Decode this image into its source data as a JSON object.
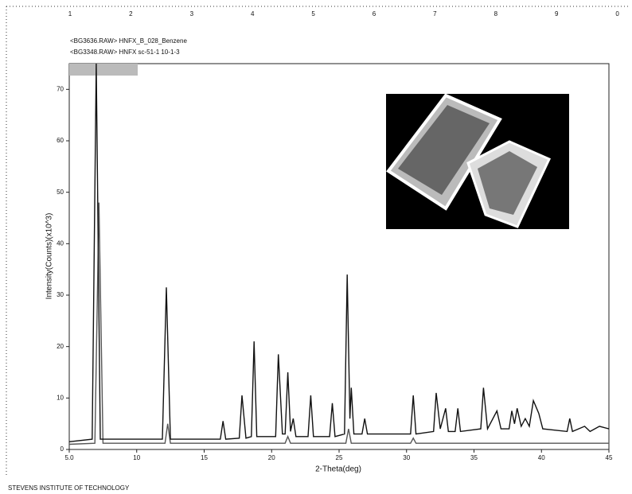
{
  "ruler_labels": [
    "1",
    "2",
    "3",
    "4",
    "5",
    "6",
    "7",
    "8",
    "9",
    "0"
  ],
  "footer": "STEVENS INSTITUTE OF TECHNOLOGY",
  "chart_data": {
    "type": "line",
    "y_label": "Intensity(Counts)(x10^3)",
    "x_label": "2-Theta(deg)",
    "xlim": [
      5,
      45
    ],
    "ylim": [
      0,
      75
    ],
    "xticks": [
      {
        "value": 5,
        "label": "5.0"
      },
      10,
      15,
      20,
      25,
      30,
      35,
      40,
      45
    ],
    "yticks": [
      0,
      10,
      20,
      30,
      40,
      50,
      60,
      70
    ],
    "series": [
      {
        "name": "<BG3636.RAW> HNFX_B_028_Benzene",
        "color": "#111111",
        "x": [
          5,
          6.7,
          7.0,
          7.3,
          11.9,
          12.2,
          12.5,
          16.2,
          16.4,
          16.6,
          17.6,
          17.8,
          18.1,
          18.5,
          18.7,
          18.9,
          20.3,
          20.5,
          20.8,
          21.0,
          21.2,
          21.4,
          21.6,
          21.8,
          22.7,
          22.9,
          23.1,
          24.3,
          24.5,
          24.7,
          25.4,
          25.6,
          25.8,
          25.9,
          26.1,
          26.7,
          26.9,
          27.1,
          30.3,
          30.5,
          30.7,
          32.0,
          32.2,
          32.5,
          32.9,
          33.1,
          33.6,
          33.8,
          34.0,
          35.5,
          35.7,
          36.0,
          36.7,
          37.0,
          37.6,
          37.8,
          38.0,
          38.2,
          38.5,
          38.8,
          39.1,
          39.4,
          39.8,
          40.1,
          41.9,
          42.1,
          42.3,
          43.2,
          43.6,
          44.3,
          45
        ],
        "values": [
          1.5,
          2,
          75,
          2,
          2,
          31.5,
          2,
          2,
          5.5,
          2,
          2.2,
          10.5,
          2.2,
          2.5,
          21,
          2.5,
          2.5,
          18.5,
          3,
          3,
          15,
          3.5,
          6,
          2.5,
          2.5,
          10.5,
          2.5,
          2.5,
          9,
          2.5,
          3,
          34,
          6,
          12,
          3,
          3,
          6,
          3,
          3,
          10.5,
          3,
          3.5,
          11,
          4,
          8,
          3.5,
          3.5,
          8,
          3.5,
          4,
          12,
          4,
          7.5,
          4,
          4,
          7.5,
          5,
          8,
          4.5,
          6,
          4.5,
          9.5,
          7,
          4,
          3.5,
          6,
          3.5,
          4.5,
          3.5,
          4.5,
          4
        ]
      },
      {
        "name": "<BG3348.RAW> HNFX sc-51-1 10-1-3",
        "color": "#555555",
        "x": [
          5,
          6.9,
          7.2,
          7.5,
          12.1,
          12.3,
          12.5,
          21.0,
          21.2,
          21.4,
          25.5,
          25.7,
          25.9,
          30.3,
          30.5,
          30.7,
          45
        ],
        "values": [
          1,
          1.2,
          48,
          1.2,
          1.2,
          5,
          1.2,
          1.2,
          2.5,
          1.2,
          1.2,
          4,
          1.2,
          1.2,
          2.2,
          1.2,
          1.2
        ]
      }
    ]
  }
}
